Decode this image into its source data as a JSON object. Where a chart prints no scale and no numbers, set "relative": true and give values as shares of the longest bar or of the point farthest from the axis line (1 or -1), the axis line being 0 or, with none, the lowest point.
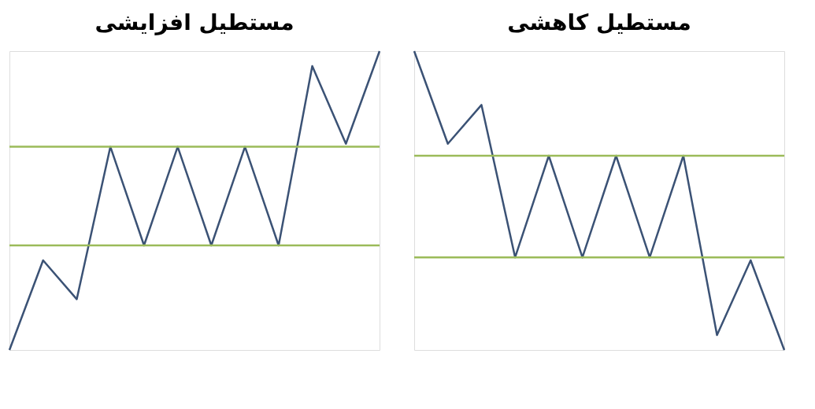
{
  "chart_data": [
    {
      "type": "line",
      "title": "مستطیل افزایشی",
      "relative": true,
      "tick_labels": false,
      "categories": [
        null,
        null,
        null,
        null,
        null,
        null,
        null,
        null,
        null,
        null,
        null,
        null
      ],
      "series": [
        {
          "color": "#3b5275",
          "values": [
            0,
            0.3,
            0.17,
            0.68,
            0.35,
            0.68,
            0.35,
            0.68,
            0.35,
            0.95,
            0.69,
            1
          ]
        }
      ],
      "ref_lines": [
        {
          "axis": "y",
          "value": 0.68,
          "color": "#9bbb59"
        },
        {
          "axis": "y",
          "value": 0.35,
          "color": "#9bbb59"
        }
      ]
    },
    {
      "type": "line",
      "title": "مستطیل کاهشی",
      "relative": true,
      "tick_labels": false,
      "categories": [
        null,
        null,
        null,
        null,
        null,
        null,
        null,
        null,
        null,
        null,
        null,
        null
      ],
      "series": [
        {
          "color": "#3b5275",
          "values": [
            1,
            0.69,
            0.82,
            0.31,
            0.65,
            0.31,
            0.65,
            0.31,
            0.65,
            0.05,
            0.3,
            0
          ]
        }
      ],
      "ref_lines": [
        {
          "axis": "y",
          "value": 0.65,
          "color": "#9bbb59"
        },
        {
          "axis": "y",
          "value": 0.31,
          "color": "#9bbb59"
        }
      ]
    }
  ]
}
